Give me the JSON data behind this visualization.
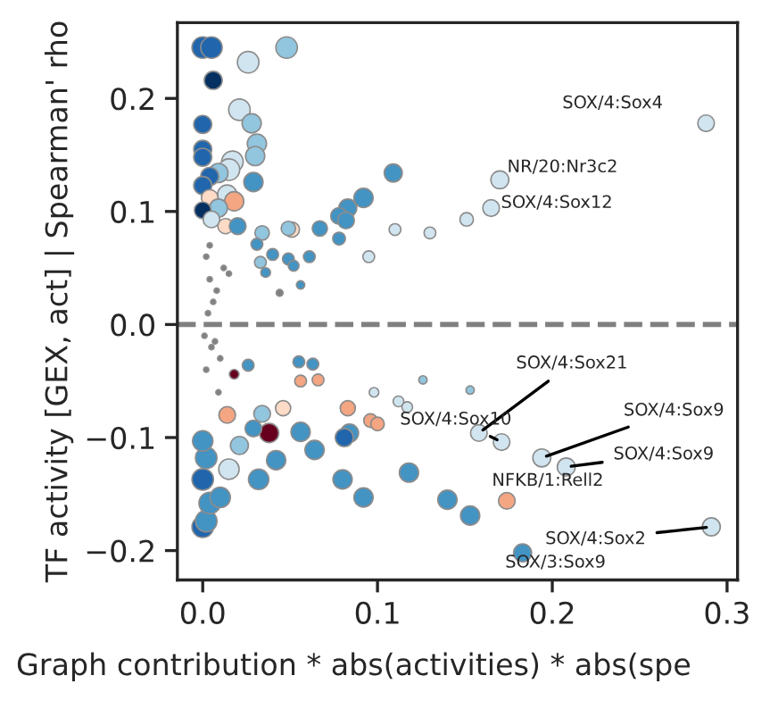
{
  "chart_data": {
    "type": "bubble",
    "xlabel": "Graph contribution * abs(activities) * abs(spe",
    "ylabel": "TF activity [GEX, act] | Spearman' rho",
    "xlim": [
      -0.0145,
      0.306
    ],
    "ylim": [
      -0.226,
      0.267
    ],
    "xticks": [
      {
        "value": 0,
        "label": "0.0"
      },
      {
        "value": 0.1,
        "label": "0.1"
      },
      {
        "value": 0.2,
        "label": "0.2"
      },
      {
        "value": 0.3,
        "label": "0.3"
      }
    ],
    "yticks": [
      {
        "value": -0.2,
        "label": "−0.2"
      },
      {
        "value": -0.1,
        "label": "−0.1"
      },
      {
        "value": 0,
        "label": "0.0"
      },
      {
        "value": 0.1,
        "label": "0.1"
      },
      {
        "value": 0.2,
        "label": "0.2"
      }
    ],
    "grid": false,
    "legend": false,
    "ref_lines": [
      {
        "axis": "y",
        "value": 0,
        "color": "#808080",
        "line_style": "dashed"
      }
    ],
    "series": [
      {
        "x": [
          0.0,
          0.005,
          0.048,
          0.026,
          0.006,
          0.021,
          0.0,
          0.028,
          0.031,
          0.0,
          0.0,
          0.03,
          0.017,
          0.015,
          0.009,
          0.004,
          0.029,
          0.0,
          0.014,
          0.004,
          0.018,
          0.009,
          0.0,
          0.005,
          0.013,
          0.02,
          0.092,
          0.083,
          0.078,
          0.082,
          0.067,
          0.051,
          0.049,
          0.034,
          0.031,
          0.078,
          0.061,
          0.049,
          0.04,
          0.033,
          0.052,
          0.095,
          0.036,
          0.056,
          0.044,
          0.288,
          0.17,
          0.165,
          0.151,
          0.13,
          0.11,
          0.109,
          0.158,
          0.171,
          0.194,
          0.208,
          0.174,
          0.291,
          0.183,
          0.153,
          0.14,
          0.118,
          0.092,
          0.126,
          0.098,
          0.153,
          0.112,
          0.117,
          0.096,
          0.1,
          0.0,
          0.002,
          0.004,
          0.01,
          0.0,
          0.015,
          0.032,
          0.042,
          0.064,
          0.08,
          0.038,
          0.029,
          0.021,
          0.056,
          0.084,
          0.081,
          0.014,
          0.083,
          0.046,
          0.002,
          0.0,
          0.034,
          0.018,
          0.055,
          0.063,
          0.056,
          0.066,
          0.026,
          0.002,
          0.004,
          0.006,
          0.003,
          0.008,
          0.001,
          0.005,
          0.01,
          0.007,
          0.012,
          0.002,
          0.004,
          0.009,
          0.015
        ],
        "values": [
          0.245,
          0.245,
          0.245,
          0.232,
          0.216,
          0.19,
          0.177,
          0.178,
          0.16,
          0.155,
          0.148,
          0.149,
          0.144,
          0.137,
          0.134,
          0.131,
          0.126,
          0.123,
          0.115,
          0.112,
          0.109,
          0.103,
          0.101,
          0.093,
          0.087,
          0.087,
          0.112,
          0.103,
          0.096,
          0.092,
          0.085,
          0.084,
          0.085,
          0.081,
          0.071,
          0.076,
          0.06,
          0.058,
          0.062,
          0.055,
          0.052,
          0.06,
          0.046,
          0.035,
          0.028,
          0.178,
          0.128,
          0.103,
          0.093,
          0.081,
          0.084,
          0.134,
          -0.096,
          -0.104,
          -0.118,
          -0.126,
          -0.156,
          -0.179,
          -0.202,
          -0.169,
          -0.155,
          -0.131,
          -0.153,
          -0.049,
          -0.06,
          -0.058,
          -0.068,
          -0.073,
          -0.085,
          -0.088,
          -0.179,
          -0.174,
          -0.158,
          -0.153,
          -0.137,
          -0.128,
          -0.137,
          -0.12,
          -0.111,
          -0.137,
          -0.096,
          -0.092,
          -0.107,
          -0.095,
          -0.096,
          -0.1,
          -0.08,
          -0.074,
          -0.074,
          -0.118,
          -0.103,
          -0.079,
          -0.044,
          -0.033,
          -0.035,
          -0.05,
          -0.049,
          -0.036,
          0.06,
          0.04,
          0.02,
          0.01,
          0.03,
          -0.01,
          -0.02,
          -0.03,
          -0.015,
          0.05,
          -0.04,
          0.07,
          -0.06,
          0.045
        ],
        "sizes": [
          1,
          1,
          1,
          1,
          0.7,
          1,
          0.7,
          0.8,
          0.8,
          0.7,
          0.7,
          0.8,
          1,
          1,
          0.8,
          0.7,
          0.8,
          0.7,
          0.8,
          0.6,
          0.8,
          0.7,
          0.6,
          0.6,
          0.5,
          0.6,
          0.8,
          0.7,
          0.6,
          0.6,
          0.5,
          0.5,
          0.45,
          0.45,
          0.3,
          0.35,
          0.3,
          0.3,
          0.3,
          0.3,
          0.25,
          0.3,
          0.2,
          0.15,
          0.1,
          0.6,
          0.7,
          0.6,
          0.4,
          0.3,
          0.3,
          0.7,
          0.6,
          0.6,
          0.7,
          0.7,
          0.6,
          0.7,
          0.7,
          0.8,
          0.8,
          0.8,
          0.8,
          0.15,
          0.2,
          0.15,
          0.25,
          0.25,
          0.4,
          0.4,
          1,
          1,
          1,
          0.9,
          1,
          0.9,
          0.9,
          0.8,
          0.8,
          0.8,
          0.8,
          0.6,
          0.7,
          0.8,
          0.7,
          0.7,
          0.6,
          0.5,
          0.5,
          1,
          0.9,
          0.6,
          0.2,
          0.3,
          0.3,
          0.3,
          0.3,
          0.3,
          0.06,
          0.06,
          0.06,
          0.06,
          0.06,
          0.06,
          0.06,
          0.06,
          0.06,
          0.06,
          0.06,
          0.06,
          0.06,
          0.06
        ],
        "colors": [
          "#2166ac",
          "#2166ac",
          "#92c5de",
          "#d1e5f0",
          "#053061",
          "#d1e5f0",
          "#2166ac",
          "#92c5de",
          "#92c5de",
          "#2166ac",
          "#2166ac",
          "#92c5de",
          "#d1e5f0",
          "#d1e5f0",
          "#92c5de",
          "#2166ac",
          "#4393c3",
          "#2166ac",
          "#d1e5f0",
          "#fddbc7",
          "#f4a582",
          "#92c5de",
          "#053061",
          "#d1e5f0",
          "#fddbc7",
          "#4393c3",
          "#4393c3",
          "#4393c3",
          "#4393c3",
          "#4393c3",
          "#4393c3",
          "#fddbc7",
          "#92c5de",
          "#92c5de",
          "#4393c3",
          "#4393c3",
          "#4393c3",
          "#4393c3",
          "#4393c3",
          "#92c5de",
          "#4393c3",
          "#d1e5f0",
          "#4393c3",
          "#4393c3",
          "#808080",
          "#d1e5f0",
          "#d1e5f0",
          "#d1e5f0",
          "#d1e5f0",
          "#d1e5f0",
          "#d1e5f0",
          "#4393c3",
          "#d1e5f0",
          "#d1e5f0",
          "#d1e5f0",
          "#d1e5f0",
          "#f4a582",
          "#d1e5f0",
          "#4393c3",
          "#4393c3",
          "#4393c3",
          "#4393c3",
          "#4393c3",
          "#92c5de",
          "#d1e5f0",
          "#92c5de",
          "#d1e5f0",
          "#d1e5f0",
          "#f4a582",
          "#f4a582",
          "#2166ac",
          "#4393c3",
          "#4393c3",
          "#4393c3",
          "#2166ac",
          "#d1e5f0",
          "#4393c3",
          "#4393c3",
          "#4393c3",
          "#4393c3",
          "#67001f",
          "#4393c3",
          "#92c5de",
          "#4393c3",
          "#4393c3",
          "#2166ac",
          "#f4a582",
          "#f4a582",
          "#fddbc7",
          "#4393c3",
          "#4393c3",
          "#92c5de",
          "#67001f",
          "#4393c3",
          "#4393c3",
          "#f4a582",
          "#f4a582",
          "#4393c3",
          "#808080",
          "#808080",
          "#808080",
          "#808080",
          "#808080",
          "#808080",
          "#808080",
          "#808080",
          "#808080",
          "#808080",
          "#808080",
          "#808080",
          "#808080",
          "#808080"
        ]
      }
    ],
    "annotations": [
      {
        "text": "SOX/4:Sox4",
        "x": 0.288,
        "y": 0.178
      },
      {
        "text": "NR/20:Nr3c2",
        "x": 0.17,
        "y": 0.128
      },
      {
        "text": "SOX/4:Sox12",
        "x": 0.165,
        "y": 0.103
      },
      {
        "text": "SOX/4:Sox21",
        "x": 0.158,
        "y": -0.096
      },
      {
        "text": "SOX/4:Sox10",
        "x": 0.171,
        "y": -0.104
      },
      {
        "text": "SOX/4:Sox9",
        "x": 0.194,
        "y": -0.118
      },
      {
        "text": "SOX/4:Sox9",
        "x": 0.208,
        "y": -0.126
      },
      {
        "text": "NFKB/1:Rell2",
        "x": 0.174,
        "y": -0.156
      },
      {
        "text": "SOX/4:Sox2",
        "x": 0.291,
        "y": -0.179
      },
      {
        "text": "SOX/3:Sox9",
        "x": 0.183,
        "y": -0.202
      }
    ]
  }
}
